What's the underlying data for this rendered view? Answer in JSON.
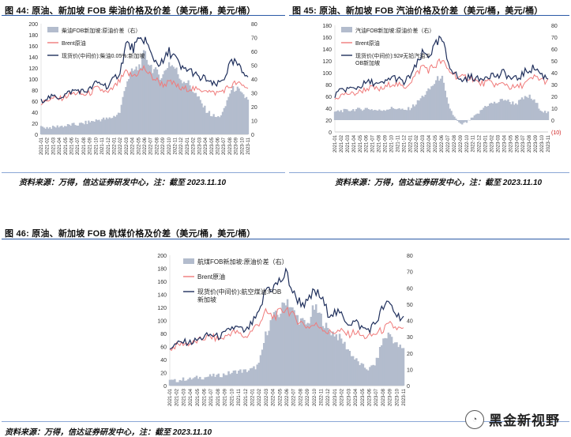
{
  "figures": [
    {
      "label": "图 44:",
      "title": "原油、新加坡 FOB 柴油价格及价差（美元/桶，美元/桶）",
      "source": "资料来源：万得，信达证券研发中心，注：截至 2023.11.10"
    },
    {
      "label": "图 45:",
      "title": "原油、新加坡 FOB 汽油价格及价差（美元/桶，美元/桶）",
      "source": "资料来源：万得，信达证券研发中心，注：截至 2023.11.10"
    },
    {
      "label": "图 46:",
      "title": "原油、新加坡 FOB 航煤价格及价差（美元/桶，美元/桶）",
      "source": "资料来源：万得，信达证券研发中心，注：截至 2023.11.10"
    }
  ],
  "watermark": {
    "text": "黑金新视野",
    "icon": "wechat-icon"
  },
  "chart_data": [
    {
      "type": "area",
      "x_ticks": [
        "2021-01",
        "2021-02",
        "2021-03",
        "2021-04",
        "2021-05",
        "2021-06",
        "2021-07",
        "2021-08",
        "2021-09",
        "2021-10",
        "2021-11",
        "2021-12",
        "2022-01",
        "2022-02",
        "2022-03",
        "2022-04",
        "2022-05",
        "2022-06",
        "2022-07",
        "2022-08",
        "2022-09",
        "2022-10",
        "2022-11",
        "2022-12",
        "2023-01",
        "2023-02",
        "2023-03",
        "2023-04",
        "2023-05",
        "2023-06",
        "2023-07",
        "2023-08",
        "2023-09",
        "2023-10",
        "2023-11"
      ],
      "y_left": {
        "range": [
          0,
          200
        ],
        "ticks": [
          "0",
          "20",
          "40",
          "60",
          "80",
          "100",
          "120",
          "140",
          "160",
          "180",
          "200"
        ]
      },
      "y_right": {
        "range": [
          0,
          80
        ],
        "ticks": [
          "0",
          "10",
          "20",
          "30",
          "40",
          "50",
          "60",
          "70",
          "80"
        ]
      },
      "series": [
        {
          "name": "柴油FOB新加坡:原油价差（右）",
          "axis": "right",
          "color": "#b3bccd",
          "kind": "area",
          "values": [
            5,
            5,
            5,
            6,
            6,
            7,
            7,
            8,
            9,
            10,
            11,
            11,
            13,
            16,
            38,
            45,
            48,
            58,
            50,
            44,
            42,
            52,
            48,
            40,
            38,
            32,
            25,
            18,
            14,
            12,
            16,
            30,
            34,
            28,
            26
          ]
        },
        {
          "name": "Brent原油",
          "axis": "left",
          "color": "#f07a7a",
          "kind": "line",
          "values": [
            55,
            62,
            65,
            64,
            68,
            73,
            75,
            71,
            74,
            83,
            80,
            74,
            85,
            97,
            112,
            105,
            112,
            120,
            105,
            98,
            90,
            93,
            91,
            81,
            83,
            83,
            78,
            83,
            75,
            75,
            80,
            86,
            93,
            88,
            85
          ]
        },
        {
          "name": "现货价(中间价):柴油0.05%:新加坡",
          "axis": "left",
          "color": "#1f2f5c",
          "kind": "line",
          "values": [
            60,
            66,
            68,
            67,
            72,
            78,
            80,
            77,
            81,
            93,
            92,
            86,
            100,
            114,
            165,
            155,
            165,
            175,
            145,
            130,
            128,
            150,
            140,
            118,
            118,
            112,
            100,
            102,
            90,
            90,
            100,
            126,
            130,
            113,
            110
          ]
        }
      ]
    },
    {
      "type": "area",
      "x_ticks": [
        "2021-01",
        "2021-02",
        "2021-03",
        "2021-04",
        "2021-05",
        "2021-06",
        "2021-07",
        "2021-08",
        "2021-09",
        "2021-10",
        "2021-11",
        "2021-12",
        "2022-01",
        "2022-02",
        "2022-03",
        "2022-04",
        "2022-05",
        "2022-06",
        "2022-07",
        "2022-08",
        "2022-09",
        "2022-10",
        "2022-11",
        "2022-12",
        "2023-01",
        "2023-02",
        "2023-03",
        "2023-04",
        "2023-05",
        "2023-06",
        "2023-07",
        "2023-08",
        "2023-09",
        "2023-10",
        "2023-11"
      ],
      "y_left": {
        "range": [
          0,
          180
        ],
        "ticks": [
          "0",
          "20",
          "40",
          "60",
          "80",
          "100",
          "120",
          "140",
          "160",
          "180"
        ]
      },
      "y_right": {
        "range": [
          -10,
          80
        ],
        "ticks": [
          "(10)",
          "0",
          "10",
          "20",
          "30",
          "40",
          "50",
          "60",
          "70",
          "80"
        ]
      },
      "series": [
        {
          "name": "汽油FOB新加坡:原油价差（右）",
          "axis": "right",
          "color": "#b3bccd",
          "kind": "area",
          "values": [
            7,
            8,
            8,
            9,
            9,
            10,
            9,
            8,
            9,
            10,
            10,
            8,
            10,
            14,
            20,
            25,
            32,
            38,
            14,
            3,
            -4,
            -2,
            2,
            6,
            12,
            14,
            15,
            18,
            15,
            14,
            18,
            20,
            15,
            8,
            6
          ]
        },
        {
          "name": "Brent原油",
          "axis": "left",
          "color": "#f07a7a",
          "kind": "line",
          "values": [
            55,
            62,
            65,
            64,
            68,
            73,
            75,
            71,
            74,
            83,
            80,
            74,
            85,
            97,
            112,
            105,
            112,
            120,
            105,
            98,
            90,
            93,
            91,
            81,
            83,
            83,
            78,
            83,
            75,
            75,
            80,
            86,
            93,
            88,
            85
          ]
        },
        {
          "name": "现货价(中间价):92#无铅汽油:FOB新加坡",
          "axis": "left",
          "color": "#1f2f5c",
          "kind": "line",
          "values": [
            62,
            70,
            73,
            73,
            77,
            83,
            84,
            79,
            83,
            93,
            90,
            82,
            95,
            111,
            132,
            130,
            144,
            158,
            119,
            101,
            86,
            91,
            93,
            87,
            95,
            97,
            93,
            101,
            90,
            89,
            98,
            106,
            108,
            96,
            91
          ]
        }
      ]
    },
    {
      "type": "area",
      "x_ticks": [
        "2021-01",
        "2021-02",
        "2021-03",
        "2021-04",
        "2021-05",
        "2021-06",
        "2021-07",
        "2021-08",
        "2021-09",
        "2021-10",
        "2021-11",
        "2021-12",
        "2022-01",
        "2022-02",
        "2022-03",
        "2022-04",
        "2022-05",
        "2022-06",
        "2022-07",
        "2022-08",
        "2022-09",
        "2022-10",
        "2022-11",
        "2022-12",
        "2023-01",
        "2023-02",
        "2023-03",
        "2023-04",
        "2023-05",
        "2023-06",
        "2023-07",
        "2023-08",
        "2023-09",
        "2023-10",
        "2023-11"
      ],
      "y_left": {
        "range": [
          0,
          200
        ],
        "ticks": [
          "0",
          "20",
          "40",
          "60",
          "80",
          "100",
          "120",
          "140",
          "160",
          "180",
          "200"
        ]
      },
      "y_right": {
        "range": [
          0,
          80
        ],
        "ticks": [
          "0",
          "10",
          "20",
          "30",
          "40",
          "50",
          "60",
          "70",
          "80"
        ]
      },
      "series": [
        {
          "name": "航煤FOB新加坡:原油价差（右）",
          "axis": "right",
          "color": "#b3bccd",
          "kind": "area",
          "values": [
            3,
            3,
            4,
            4,
            5,
            5,
            6,
            6,
            7,
            8,
            9,
            9,
            10,
            13,
            32,
            42,
            44,
            54,
            45,
            40,
            37,
            48,
            42,
            34,
            32,
            28,
            22,
            16,
            12,
            10,
            14,
            28,
            32,
            25,
            22
          ]
        },
        {
          "name": "Brent原油",
          "axis": "left",
          "color": "#f07a7a",
          "kind": "line",
          "values": [
            55,
            62,
            65,
            64,
            68,
            73,
            75,
            71,
            74,
            83,
            80,
            74,
            85,
            97,
            112,
            105,
            112,
            120,
            105,
            98,
            90,
            93,
            91,
            81,
            83,
            83,
            78,
            83,
            75,
            75,
            80,
            86,
            93,
            88,
            85
          ]
        },
        {
          "name": "现货价(中间价):航空煤油:FOB新加坡",
          "axis": "left",
          "color": "#1f2f5c",
          "kind": "line",
          "values": [
            58,
            64,
            67,
            66,
            70,
            75,
            78,
            75,
            79,
            89,
            88,
            82,
            96,
            110,
            150,
            150,
            160,
            172,
            140,
            128,
            125,
            145,
            135,
            112,
            112,
            108,
            96,
            98,
            88,
            86,
            97,
            120,
            126,
            108,
            105
          ]
        }
      ]
    }
  ]
}
